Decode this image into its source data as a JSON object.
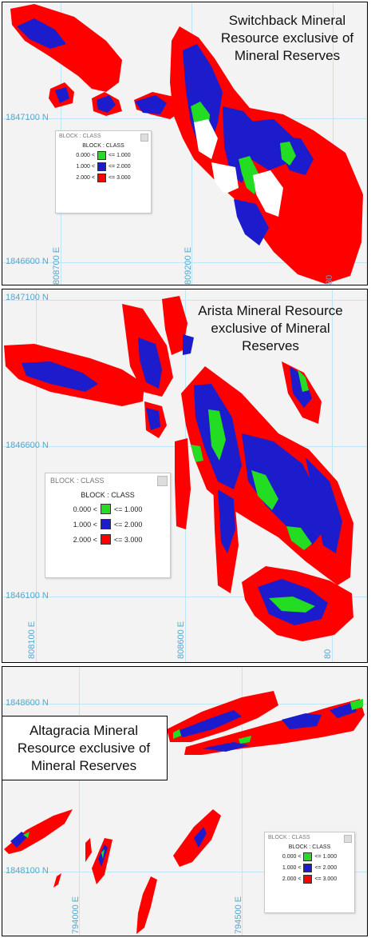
{
  "colors": {
    "green": "#22dd22",
    "blue": "#1c1ccc",
    "red": "#ff0000",
    "grid": "#bfe6f5",
    "label": "#5aa6c9"
  },
  "legend": {
    "header": "BLOCK : CLASS",
    "title": "BLOCK : CLASS",
    "rows": [
      {
        "low": "0.000 <",
        "high": "<= 1.000",
        "color": "#22dd22"
      },
      {
        "low": "1.000 <",
        "high": "<= 2.000",
        "color": "#1c1ccc"
      },
      {
        "low": "2.000 <",
        "high": "<= 3.000",
        "color": "#ff0000"
      }
    ]
  },
  "panels": [
    {
      "name": "switchback",
      "title": "Switchback Mineral Resource exclusive of Mineral Reserves",
      "northings": [
        "1847100 N",
        "1846600 N"
      ],
      "eastings": [
        "808700 E",
        "809200 E",
        "80"
      ]
    },
    {
      "name": "arista",
      "title": "Arista Mineral Resource exclusive of Mineral Reserves",
      "northings": [
        "1847100 N",
        "1846600 N",
        "1846100 N"
      ],
      "eastings": [
        "808100 E",
        "808600 E",
        "80"
      ]
    },
    {
      "name": "altagracia",
      "title": "Altagracia Mineral Resource exclusive of Mineral Reserves",
      "northings": [
        "1848600 N",
        "1848100 N"
      ],
      "eastings": [
        "794000 E",
        "794500 E"
      ]
    }
  ]
}
